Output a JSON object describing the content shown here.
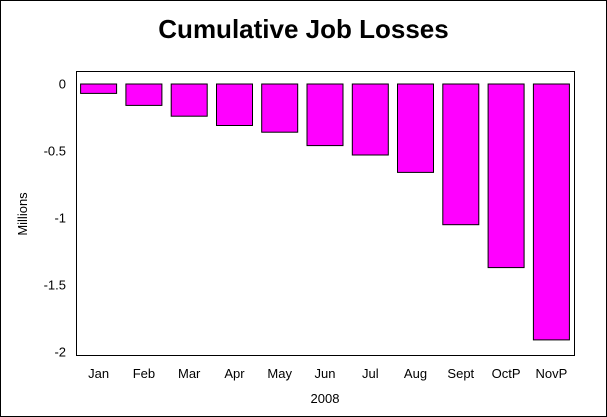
{
  "chart_data": {
    "type": "bar",
    "title": "Cumulative Job Losses",
    "xlabel": "2008",
    "ylabel": "Millions",
    "categories": [
      "Jan",
      "Feb",
      "Mar",
      "Apr",
      "May",
      "Jun",
      "Jul",
      "Aug",
      "Sept",
      "OctP",
      "NovP"
    ],
    "values": [
      -0.07,
      -0.16,
      -0.24,
      -0.31,
      -0.36,
      -0.46,
      -0.53,
      -0.66,
      -1.05,
      -1.37,
      -1.91
    ],
    "ylim": [
      -2,
      0.1
    ],
    "yticks": [
      {
        "value": 0,
        "label": "0"
      },
      {
        "value": -0.5,
        "label": "-0.5"
      },
      {
        "value": -1,
        "label": "-1"
      },
      {
        "value": -1.5,
        "label": "-1.5"
      },
      {
        "value": -2,
        "label": "-2"
      }
    ],
    "grid": false,
    "bar_color": "#ff00ff",
    "bar_edge_color": "#000000"
  }
}
